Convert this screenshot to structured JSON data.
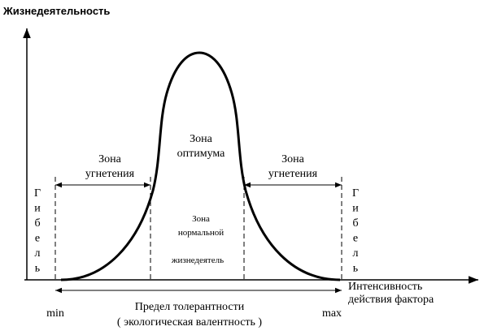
{
  "axes": {
    "y_label": "Жизнедеятельность",
    "x_label": [
      "Интенсивность",
      "действия фактора"
    ]
  },
  "zones": {
    "left_depression": [
      "Зона",
      "угнетения"
    ],
    "optimum": [
      "Зона",
      "оптимума"
    ],
    "right_depression": [
      "Зона",
      "угнетения"
    ],
    "normal": [
      "Зона",
      "нормальной",
      "жизнедеятель"
    ]
  },
  "death": {
    "left": [
      "Г",
      "и",
      "б",
      "е",
      "л",
      "ь"
    ],
    "right": [
      "Г",
      "и",
      "б",
      "е",
      "л",
      "ь"
    ]
  },
  "limits": {
    "min": "min",
    "max": "max"
  },
  "tolerance": [
    "Предел толерантности",
    "( экологическая валентность )"
  ]
}
